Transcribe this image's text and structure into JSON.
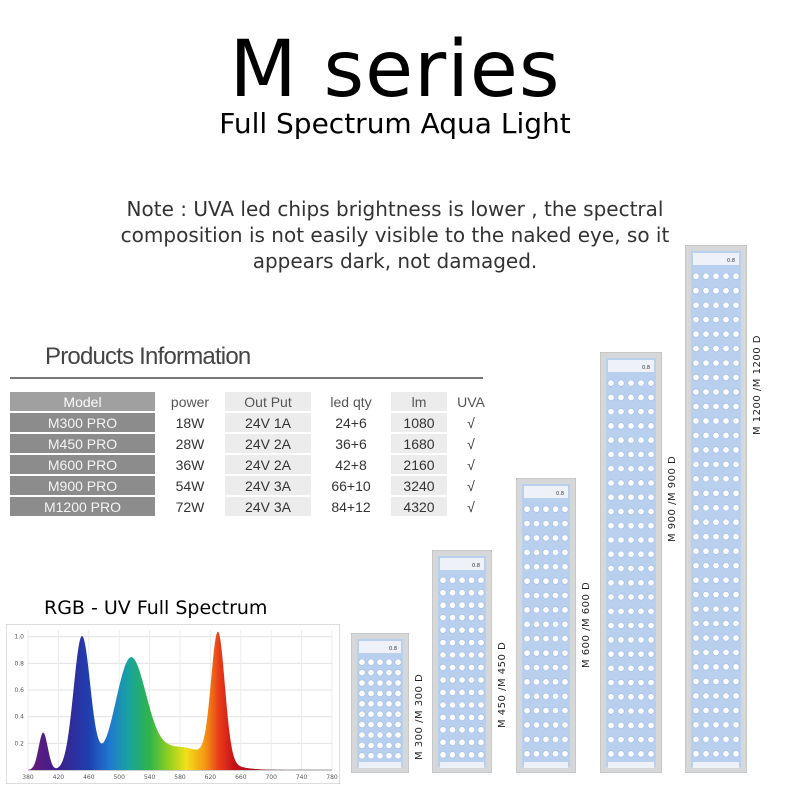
{
  "header": {
    "title": "M series",
    "subtitle": "Full Spectrum Aqua Light"
  },
  "note": {
    "line1": "Note : UVA led chips brightness is lower ,  the spectral",
    "line2": "composition is not easily visible to the naked eye, so it",
    "line3": "appears dark, not damaged."
  },
  "products": {
    "heading": "Products Information",
    "columns": [
      "Model",
      "power",
      "Out Put",
      "led qty",
      "lm",
      "UVA"
    ],
    "rows": [
      [
        "M300 PRO",
        "18W",
        "24V 1A",
        "24+6",
        "1080",
        "√"
      ],
      [
        "M450 PRO",
        "28W",
        "24V 2A",
        "36+6",
        "1680",
        "√"
      ],
      [
        "M600 PRO",
        "36W",
        "24V 2A",
        "42+8",
        "2160",
        "√"
      ],
      [
        "M900 PRO",
        "54W",
        "24V 3A",
        "66+10",
        "3240",
        "√"
      ],
      [
        "M1200 PRO",
        "72W",
        "24V 3A",
        "84+12",
        "4320",
        "√"
      ]
    ]
  },
  "spectrum": {
    "title": "RGB - UV  Full Spectrum"
  },
  "chart_data": {
    "type": "area",
    "title": "",
    "xlabel": "",
    "ylabel": "",
    "xlim": [
      380,
      780
    ],
    "ylim": [
      0,
      1.05
    ],
    "x_ticks": [
      380,
      420,
      460,
      500,
      540,
      580,
      620,
      660,
      700,
      740,
      780
    ],
    "y_ticks": [
      0.2,
      0.4,
      0.6,
      0.8,
      1.0
    ],
    "grid": true,
    "peaks": [
      {
        "center": 400,
        "height": 0.28,
        "width": 6
      },
      {
        "center": 451,
        "height": 1.0,
        "width": 11
      },
      {
        "center": 515,
        "height": 0.8,
        "width": 20
      },
      {
        "center": 580,
        "height": 0.17,
        "width": 40
      },
      {
        "center": 630,
        "height": 0.96,
        "width": 9
      }
    ],
    "fill": "visible-spectrum-gradient"
  },
  "fixtures": [
    {
      "label": "M 300 /M 300 D",
      "badge": "0.8",
      "rows": 10
    },
    {
      "label": "M 450 /M 450 D",
      "badge": "0.8",
      "rows": 15
    },
    {
      "label": "M 600 /M 600 D",
      "badge": "0.8",
      "rows": 18
    },
    {
      "label": "M 900 /M 900 D",
      "badge": "0.8",
      "rows": 27
    },
    {
      "label": "M 1200 /M 1200 D",
      "badge": "0.8",
      "rows": 34
    }
  ],
  "colors": {
    "led": "#c9dbf3",
    "led_bright": "#ffffff",
    "frame": "#d6d7d9",
    "table_model_bg": "#8c8c8c"
  }
}
